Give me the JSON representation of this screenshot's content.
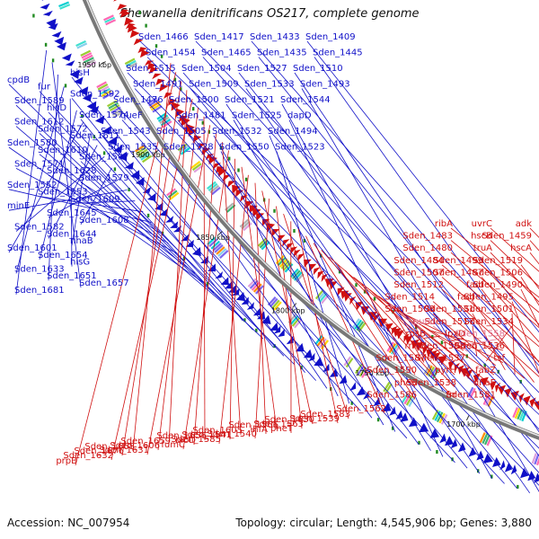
{
  "title": "Shewanella denitrificans OS217, complete genome",
  "footer": {
    "accession": "Accession: NC_007954",
    "summary": "Topology: circular; Length: 4,545,906 bp; Genes: 3,880"
  },
  "ticks": [
    "kbp",
    "1650 kbp",
    "1700 kbp",
    "1750 kbp",
    "1800 kbp",
    "1850 kbp",
    "1900 kbp",
    "1950 kbp"
  ],
  "forward_labels": [
    "Sden_1409",
    "Sden_1433",
    "Sden_1417",
    "Sden_1466",
    "Sden_1445",
    "Sden_1435",
    "Sden_1465",
    "Sden_1454",
    "Sden_1510",
    "Sden_1527",
    "Sden_1504",
    "Sden_1515",
    "Sden_1493",
    "Sden_1533",
    "Sden_1509",
    "Sden_1491",
    "Sden_1544",
    "Sden_1521",
    "Sden_1500",
    "Sden_1476",
    "dapD",
    "Sden_1525",
    "Sden_1481",
    "queF",
    "Sden_1494",
    "Sden_1532",
    "Sden_1505",
    "Sden_1543",
    "Sden_1523",
    "Sden_1550",
    "Sden_1528",
    "Sden_1535",
    "hisH",
    "cpdB",
    "fur",
    "Sden_1592",
    "Sden_1589",
    "hisD",
    "Sden_1574",
    "Sden_1612",
    "Sden_1572",
    "Sden_1611",
    "Sden_1580",
    "Sden_1610",
    "Sden_1597",
    "Sden_1571",
    "Sden_1628",
    "Sden_1579",
    "Sden_1552",
    "Sden_1553",
    "Sden_1609",
    "minE",
    "Sden_1645",
    "Sden_1608",
    "Sden_1582",
    "Sden_1644",
    "nhaB",
    "Sden_1601",
    "Sden_1654",
    "hisG",
    "Sden_1633",
    "Sden_1651",
    "Sden_1657",
    "Sden_1681"
  ],
  "reverse_labels": [
    "adk",
    "uvrC",
    "ribA",
    "Sden_1459",
    "hscB",
    "Sden_1483",
    "hscA",
    "truA",
    "Sden_1480",
    "Sden_1519",
    "Sden_1499",
    "Sden_1484",
    "Sden_1506",
    "Sden_1487",
    "Sden_1507",
    "Sden_1490",
    "fadI",
    "Sden_1512",
    "Sden_1495",
    "fadJ",
    "Sden_1514",
    "Sden_1501",
    "Sden_1531",
    "Sden_1508",
    "Sden_1534",
    "Sden_1517",
    "purU",
    "Sden_1558",
    "lpxD",
    "rpsB",
    "Sden_1536",
    "Sden_1588",
    "rnhB",
    "tsf",
    "Sden_1537",
    "Sden_1587",
    "fabZ",
    "pyrH",
    "Sden_1590",
    "dnaE",
    "Sden_1538",
    "pheS",
    "Sden_1581",
    "frr",
    "Sden_1586",
    "Sden_1562",
    "Sden_1539",
    "pheT",
    "Sden_1583",
    "Sden_1563",
    "Sden_1540",
    "Sden_1630",
    "ihfA",
    "Sden_1585",
    "Sden_1566",
    "Sden_1541",
    "fumC",
    "Sden_1605",
    "bioD",
    "Sden_1631",
    "Sden_1656",
    "Sden_1606",
    "Sden_1632",
    "Sden_1659",
    "Sden_1676",
    "prpB",
    "Sden_1668"
  ],
  "colors": {
    "forward": "#1010c8",
    "reverse": "#d01010",
    "highlight": "#e07090",
    "rna": "#228b22",
    "backbone": "#555555"
  }
}
